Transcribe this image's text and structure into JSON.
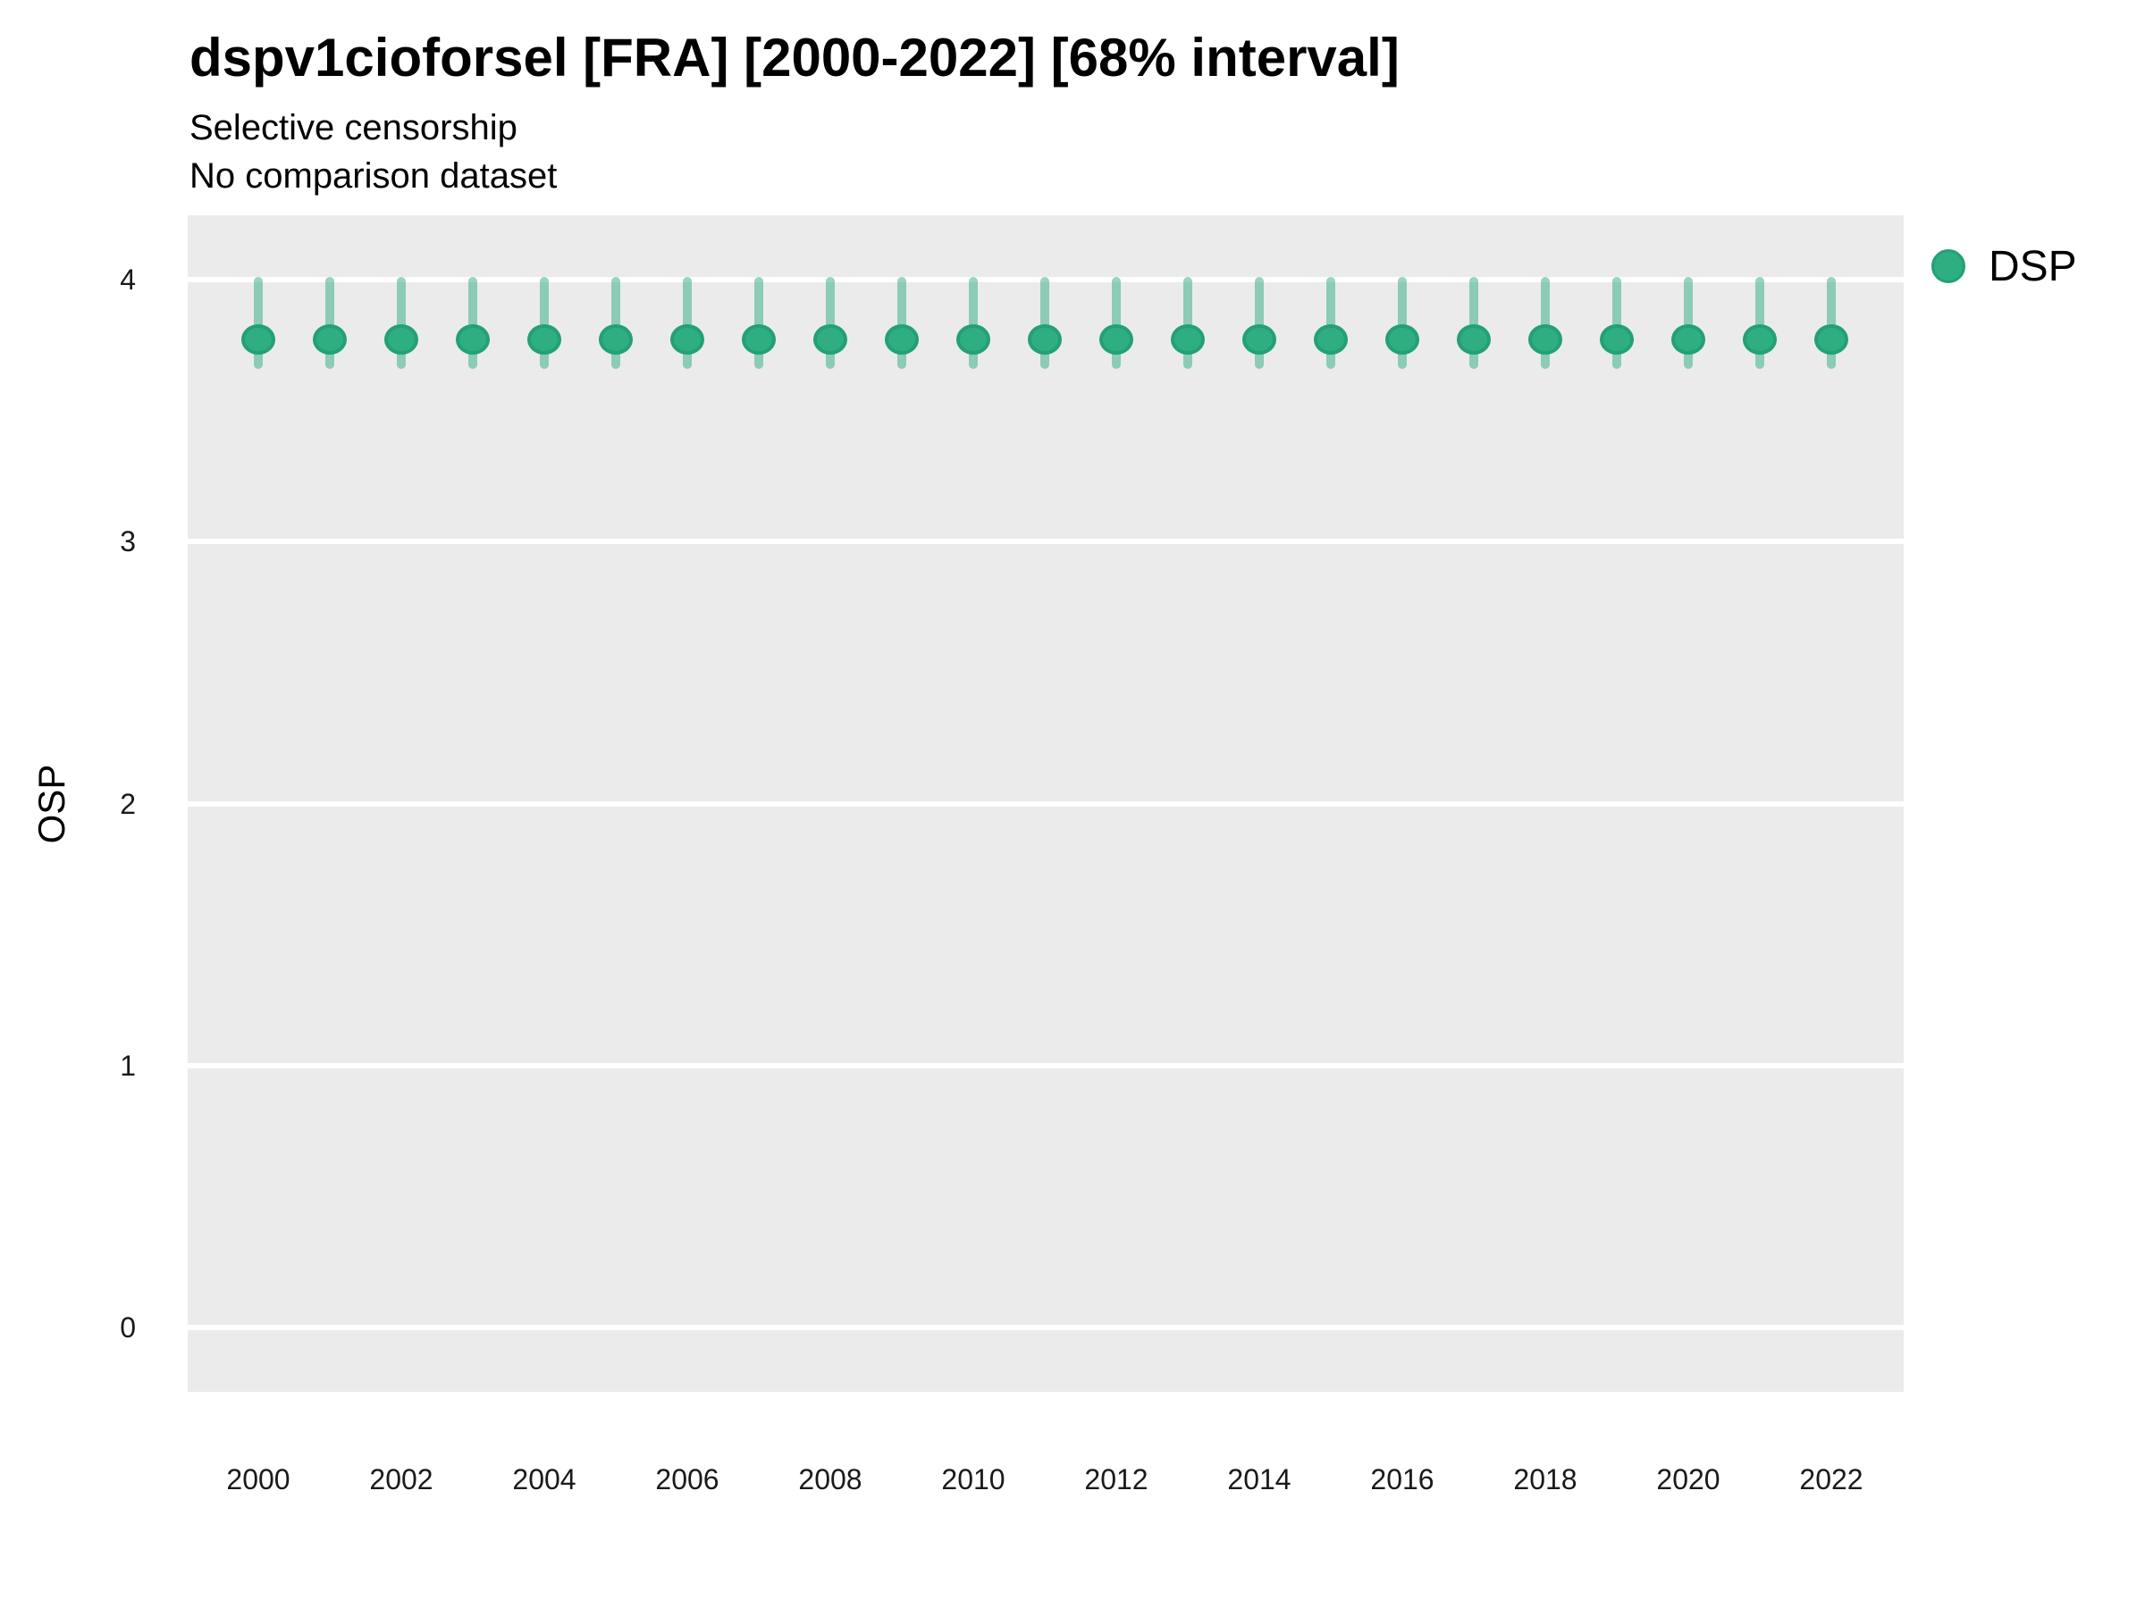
{
  "title": "dspv1cioforsel [FRA] [2000-2022] [68% interval]",
  "subtitle": "Selective censorship",
  "note": "No comparison dataset",
  "legend": {
    "items": [
      {
        "label": "DSP",
        "color": "#2FAE82"
      }
    ]
  },
  "colors": {
    "point_fill": "#2FAE82",
    "point_border": "#23A076",
    "interval_bar": "rgba(46,172,129,0.5)",
    "panel_background": "#EBEBEB",
    "gridline": "#FFFFFF",
    "axis_text": "#1a1a1a"
  },
  "chart_data": {
    "type": "scatter",
    "title": "dspv1cioforsel [FRA] [2000-2022] [68% interval]",
    "subtitle": "Selective censorship",
    "note": "No comparison dataset",
    "xlabel": "",
    "ylabel": "OSP",
    "legend_position": "right",
    "grid": "major horizontal white lines on gray panel",
    "xlim": [
      1999,
      2023
    ],
    "ylim": [
      -0.25,
      4.25
    ],
    "yticks": [
      0,
      1,
      2,
      3,
      4
    ],
    "xticks": [
      2000,
      2002,
      2004,
      2006,
      2008,
      2010,
      2012,
      2014,
      2016,
      2018,
      2020,
      2022
    ],
    "x": [
      2000,
      2001,
      2002,
      2003,
      2004,
      2005,
      2006,
      2007,
      2008,
      2009,
      2010,
      2011,
      2012,
      2013,
      2014,
      2015,
      2016,
      2017,
      2018,
      2019,
      2020,
      2021,
      2022
    ],
    "series": [
      {
        "name": "DSP",
        "values": [
          3.77,
          3.77,
          3.77,
          3.77,
          3.77,
          3.77,
          3.77,
          3.77,
          3.77,
          3.77,
          3.77,
          3.77,
          3.77,
          3.77,
          3.77,
          3.77,
          3.77,
          3.77,
          3.77,
          3.77,
          3.77,
          3.77,
          3.77
        ],
        "lower": [
          3.66,
          3.66,
          3.66,
          3.66,
          3.66,
          3.66,
          3.66,
          3.66,
          3.66,
          3.66,
          3.66,
          3.66,
          3.66,
          3.66,
          3.66,
          3.66,
          3.66,
          3.66,
          3.66,
          3.66,
          3.66,
          3.66,
          3.66
        ],
        "upper": [
          4.01,
          4.01,
          4.01,
          4.01,
          4.01,
          4.01,
          4.01,
          4.01,
          4.01,
          4.01,
          4.01,
          4.01,
          4.01,
          4.01,
          4.01,
          4.01,
          4.01,
          4.01,
          4.01,
          4.01,
          4.01,
          4.01,
          4.01
        ]
      }
    ]
  }
}
